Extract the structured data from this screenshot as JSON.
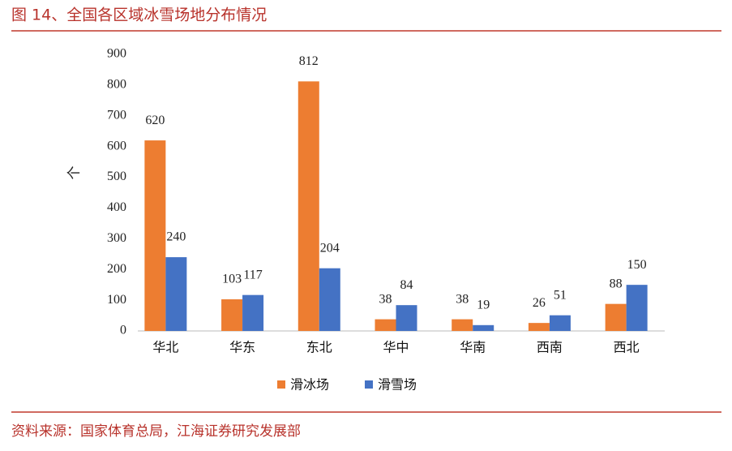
{
  "header": {
    "title": "图 14、全国各区域冰雪场地分布情况"
  },
  "chart_data": {
    "type": "bar",
    "y_label": "个",
    "categories": [
      "华北",
      "华东",
      "东北",
      "华中",
      "华南",
      "西南",
      "西北"
    ],
    "series": [
      {
        "name": "滑冰场",
        "color": "#ed7d31",
        "values": [
          620,
          103,
          812,
          38,
          38,
          26,
          88
        ]
      },
      {
        "name": "滑雪场",
        "color": "#4472c4",
        "values": [
          240,
          117,
          204,
          84,
          19,
          51,
          150
        ]
      }
    ],
    "ylim": [
      0,
      900
    ],
    "yticks": [
      0,
      100,
      200,
      300,
      400,
      500,
      600,
      700,
      800,
      900
    ],
    "grid": false,
    "legend": "bottom"
  },
  "source": "资料来源：国家体育总局，江海证券研究发展部"
}
